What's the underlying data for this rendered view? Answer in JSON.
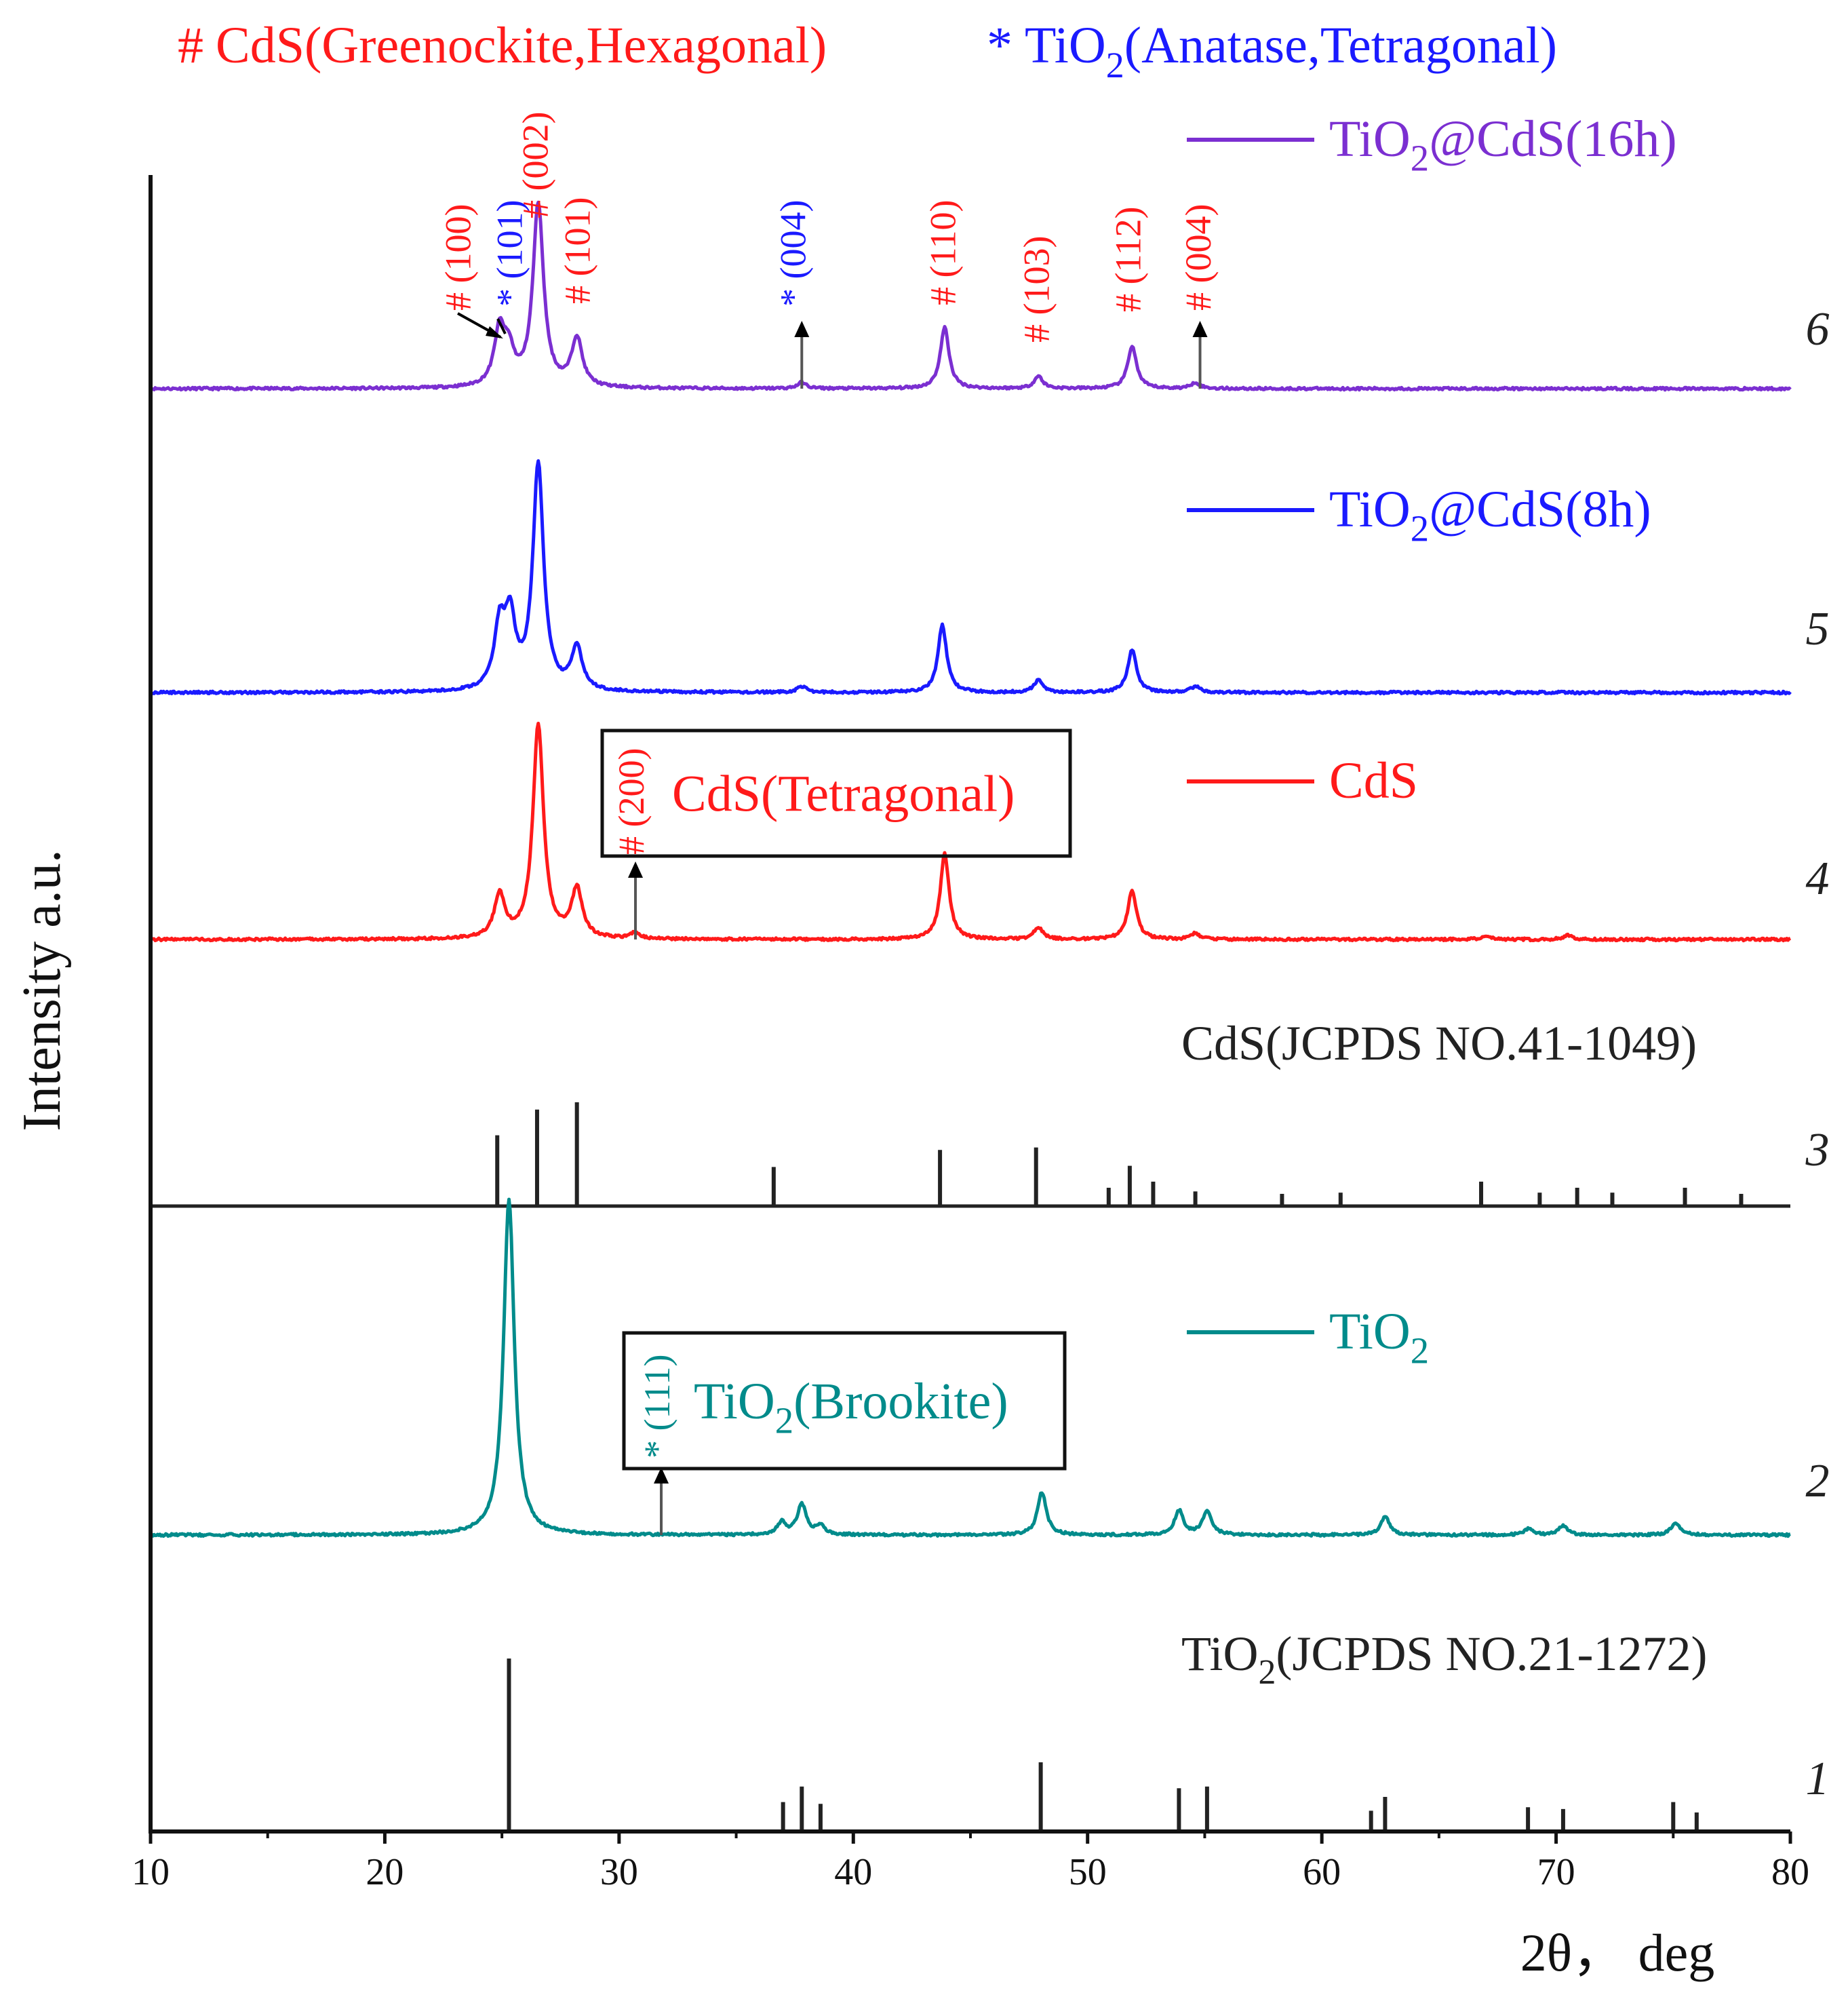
{
  "chart_data": {
    "type": "line",
    "legend_header": {
      "cds_marker": "#",
      "cds_text": "CdS(Greenockite,Hexagonal)",
      "tio2_marker": "*",
      "tio2_pre": "TiO",
      "tio2_sub": "2",
      "tio2_post": "(Anatase,Tetragonal)"
    },
    "xlabel": "2θ， deg",
    "ylabel": "Intensity a.u.",
    "xlim": [
      10,
      80
    ],
    "x_ticks": [
      10,
      20,
      30,
      40,
      50,
      60,
      70,
      80
    ],
    "colors": {
      "cds": "#ff1a1a",
      "tio2_anatase": "#1a1aff",
      "tio2": "#008b8b",
      "tio2_cds_16h": "#7b2fd1",
      "tio2_cds_8h": "#1a1aff",
      "reference": "#222222"
    },
    "series": [
      {
        "number": "6",
        "name_pre": "TiO",
        "name_sub": "2",
        "name_post": "@CdS(16h)",
        "color": "#7b2fd1",
        "kind": "pattern",
        "peaks": [
          [
            24.9,
            0.09
          ],
          [
            25.3,
            0.05
          ],
          [
            26.55,
            0.3
          ],
          [
            28.2,
            0.08
          ],
          [
            37.8,
            0.01
          ],
          [
            43.9,
            0.1
          ],
          [
            47.9,
            0.02
          ],
          [
            51.9,
            0.07
          ],
          [
            54.6,
            0.01
          ]
        ]
      },
      {
        "number": "5",
        "name_pre": "TiO",
        "name_sub": "2",
        "name_post": "@CdS(8h)",
        "color": "#1a1aff",
        "kind": "pattern",
        "peaks": [
          [
            24.9,
            0.1
          ],
          [
            25.35,
            0.11
          ],
          [
            26.55,
            0.37
          ],
          [
            28.2,
            0.07
          ],
          [
            37.8,
            0.01
          ],
          [
            43.8,
            0.11
          ],
          [
            47.9,
            0.02
          ],
          [
            51.9,
            0.07
          ],
          [
            54.6,
            0.01
          ]
        ]
      },
      {
        "number": "4",
        "name_pre": "CdS",
        "name_sub": "",
        "name_post": "",
        "color": "#ff1a1a",
        "kind": "pattern",
        "peaks": [
          [
            24.9,
            0.07
          ],
          [
            26.55,
            0.35
          ],
          [
            28.2,
            0.08
          ],
          [
            30.7,
            0.01
          ],
          [
            43.9,
            0.14
          ],
          [
            47.9,
            0.02
          ],
          [
            51.9,
            0.08
          ],
          [
            54.6,
            0.01
          ],
          [
            67,
            0.005
          ],
          [
            70.5,
            0.007
          ]
        ]
      },
      {
        "number": "3",
        "name_pre": "CdS(JCPDS NO.41-1049)",
        "name_sub": "",
        "name_post": "",
        "color": "#222222",
        "kind": "reference",
        "lines": [
          [
            24.8,
            0.58
          ],
          [
            26.5,
            0.79
          ],
          [
            28.2,
            0.85
          ],
          [
            36.6,
            0.32
          ],
          [
            43.7,
            0.46
          ],
          [
            47.8,
            0.48
          ],
          [
            50.9,
            0.15
          ],
          [
            51.8,
            0.33
          ],
          [
            52.8,
            0.2
          ],
          [
            54.6,
            0.12
          ],
          [
            58.3,
            0.1
          ],
          [
            60.8,
            0.11
          ],
          [
            66.8,
            0.2
          ],
          [
            69.3,
            0.11
          ],
          [
            70.9,
            0.15
          ],
          [
            72.4,
            0.11
          ],
          [
            75.5,
            0.15
          ],
          [
            77.9,
            0.1
          ]
        ]
      },
      {
        "number": "2",
        "name_pre": "TiO",
        "name_sub": "2",
        "name_post": "",
        "color": "#008b8b",
        "kind": "pattern",
        "peaks": [
          [
            25.3,
            0.55
          ],
          [
            36.95,
            0.02
          ],
          [
            37.8,
            0.05
          ],
          [
            38.6,
            0.015
          ],
          [
            48.05,
            0.07
          ],
          [
            53.9,
            0.04
          ],
          [
            55.1,
            0.04
          ],
          [
            62.7,
            0.03
          ],
          [
            68.8,
            0.01
          ],
          [
            70.3,
            0.015
          ],
          [
            75.1,
            0.02
          ]
        ]
      },
      {
        "number": "1",
        "name_pre": "TiO",
        "name_sub": "2",
        "name_post": "(JCPDS NO.21-1272)",
        "color": "#222222",
        "kind": "reference",
        "lines": [
          [
            25.3,
            1.0
          ],
          [
            37.0,
            0.17
          ],
          [
            37.8,
            0.26
          ],
          [
            38.6,
            0.16
          ],
          [
            48.0,
            0.4
          ],
          [
            53.9,
            0.25
          ],
          [
            55.1,
            0.26
          ],
          [
            62.1,
            0.12
          ],
          [
            62.7,
            0.2
          ],
          [
            68.8,
            0.14
          ],
          [
            70.3,
            0.13
          ],
          [
            75.0,
            0.17
          ],
          [
            76.0,
            0.11
          ]
        ]
      }
    ],
    "hkl_labels": [
      {
        "series": "6",
        "x": 23.3,
        "color": "#ff1a1a",
        "text": "# (100)"
      },
      {
        "series": "6",
        "x": 25.5,
        "color": "#1a1aff",
        "text": "* (101)"
      },
      {
        "series": "6",
        "x": 26.6,
        "color": "#ff1a1a",
        "text": "# (002)"
      },
      {
        "series": "6",
        "x": 28.4,
        "color": "#ff1a1a",
        "text": "# (101)"
      },
      {
        "series": "6",
        "x": 37.6,
        "color": "#1a1aff",
        "text": "* (004)"
      },
      {
        "series": "6",
        "x": 44.0,
        "color": "#ff1a1a",
        "text": "# (110)"
      },
      {
        "series": "6",
        "x": 48.0,
        "color": "#ff1a1a",
        "text": "# (103)"
      },
      {
        "series": "6",
        "x": 51.9,
        "color": "#ff1a1a",
        "text": "# (112)"
      },
      {
        "series": "6",
        "x": 54.9,
        "color": "#ff1a1a",
        "text": "# (004)"
      },
      {
        "series": "4",
        "x": 30.7,
        "color": "#ff1a1a",
        "text": "# (200)"
      },
      {
        "series": "2",
        "x": 31.8,
        "color": "#008b8b",
        "text": "* (111)"
      }
    ],
    "arrows": [
      {
        "series": "6",
        "x": 37.8
      },
      {
        "series": "6",
        "x": 54.8
      },
      {
        "series": "4",
        "x": 30.7
      },
      {
        "series": "2",
        "x": 31.8
      }
    ],
    "inset_boxes": [
      {
        "series": "4",
        "pre": "CdS(Tetragonal)",
        "sub": "",
        "post": "",
        "color": "#ff1a1a"
      },
      {
        "series": "2",
        "pre": "TiO",
        "sub": "2",
        "post": "(Brookite)",
        "color": "#008b8b"
      }
    ]
  }
}
